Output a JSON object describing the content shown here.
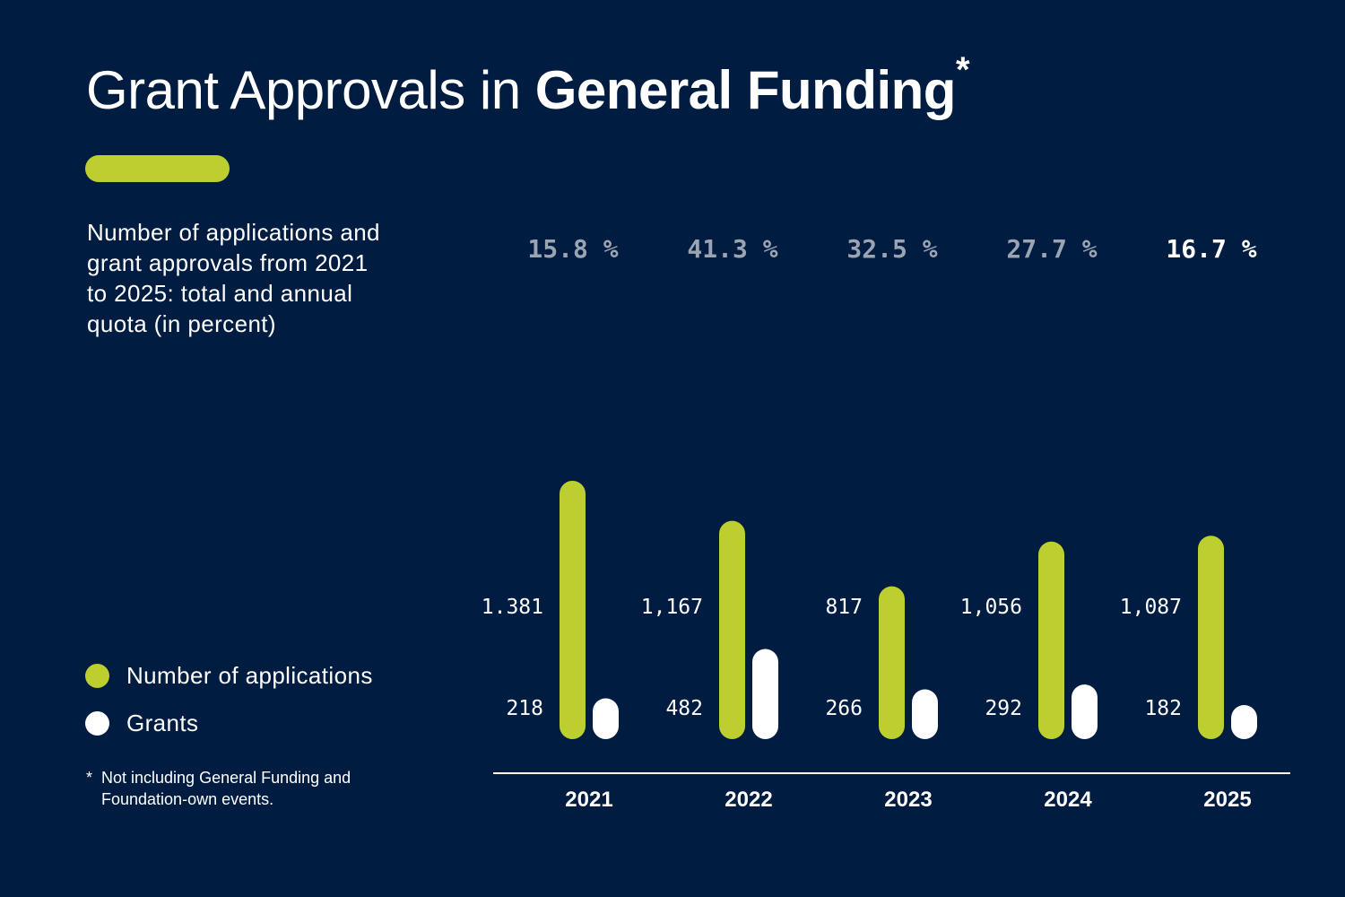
{
  "header": {
    "title_regular": "Grant Approvals in ",
    "title_bold": "General Funding",
    "title_mark": "*"
  },
  "subtitle": "Number of applications and grant approvals from 2021 to 2025: total and annual quota (in percent)",
  "footnote": {
    "mark": "*",
    "text": "Not including General Funding and Foundation-own events."
  },
  "colors": {
    "background": "#001c41",
    "applications": "#bccf2e",
    "grants": "#ffffff",
    "quota_muted": "#9aa4b3",
    "quota_highlight": "#ffffff"
  },
  "chart_data": {
    "type": "bar",
    "categories": [
      "2021",
      "2022",
      "2023",
      "2024",
      "2025"
    ],
    "series": [
      {
        "name": "Number of applications",
        "values": [
          1381,
          1167,
          817,
          1056,
          1087
        ],
        "labels": [
          "1.381",
          "1,167",
          "817",
          "1,056",
          "1,087"
        ]
      },
      {
        "name": "Grants",
        "values": [
          218,
          482,
          266,
          292,
          182
        ],
        "labels": [
          "218",
          "482",
          "266",
          "292",
          "182"
        ]
      }
    ],
    "quota": [
      "15.8 %",
      "41.3 %",
      "32.5 %",
      "27.7 %",
      "16.7 %"
    ],
    "highlighted_quota": "2025",
    "ylim": [
      0,
      1400
    ],
    "grid": false,
    "legend_position": "bottom-left"
  }
}
